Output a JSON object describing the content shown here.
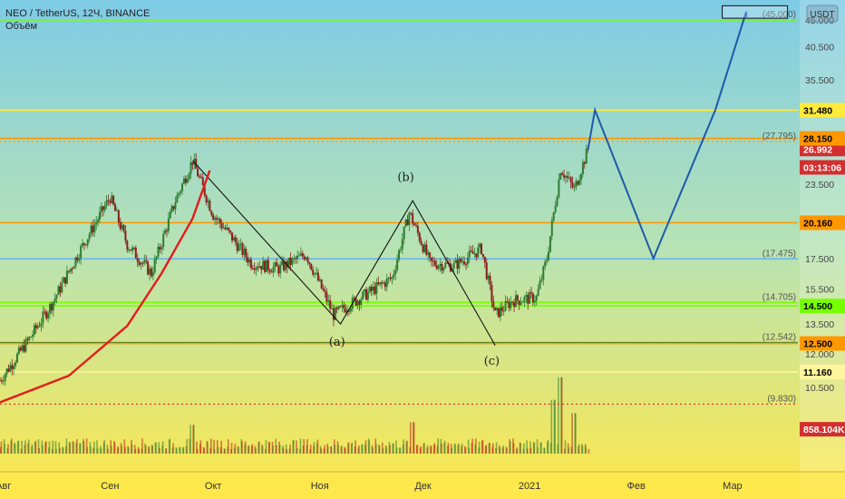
{
  "header": {
    "symbol_line": "NEO / TetherUS, 12Ч, BINANCE",
    "volume_label": "Объём",
    "currency_badge": "USDT"
  },
  "colors": {
    "bg_top": "#7ecbe6",
    "bg_bottom": "#ffe84a",
    "candle_up": "#2e7d32",
    "candle_down": "#8b1e1e",
    "orange": "#ff9800",
    "yellow": "#ffeb3b",
    "green": "#76ff03",
    "blue_line": "#1e5aa8",
    "red_curve": "#e11d1d",
    "price_red": "#d32f2f"
  },
  "chart_data": {
    "type": "candlestick",
    "symbol": "NEO / TetherUS",
    "interval": "12Ч",
    "exchange": "BINANCE",
    "y_axis": {
      "scale": "log",
      "range": [
        9.0,
        48.0
      ],
      "ticks": [
        "45.000",
        "40.500",
        "35.500",
        "23.500",
        "17.500",
        "15.500",
        "13.500",
        "12.000",
        "10.500"
      ]
    },
    "x_axis": {
      "labels": [
        "Авг",
        "Сен",
        "Окт",
        "Ноя",
        "Дек",
        "2021",
        "Фев",
        "Мар"
      ],
      "label_dates": [
        "2020-08-01",
        "2020-09-01",
        "2020-10-01",
        "2020-11-01",
        "2020-12-01",
        "2021-01-01",
        "2021-02-01",
        "2021-03-01"
      ],
      "range": [
        "2020-07-31",
        "2021-03-20"
      ]
    },
    "price_points": [
      [
        "2020-07-31",
        10.8
      ],
      [
        "2020-08-08",
        12.6
      ],
      [
        "2020-08-15",
        14.6
      ],
      [
        "2020-08-24",
        18.4
      ],
      [
        "2020-09-01",
        22.3
      ],
      [
        "2020-09-06",
        18.5
      ],
      [
        "2020-09-13",
        16.5
      ],
      [
        "2020-09-20",
        22.0
      ],
      [
        "2020-09-25",
        25.8
      ],
      [
        "2020-10-01",
        20.8
      ],
      [
        "2020-10-05",
        19.5
      ],
      [
        "2020-10-12",
        17.2
      ],
      [
        "2020-10-20",
        16.8
      ],
      [
        "2020-10-28",
        17.8
      ],
      [
        "2020-11-05",
        14.0
      ],
      [
        "2020-11-13",
        15.0
      ],
      [
        "2020-11-22",
        16.2
      ],
      [
        "2020-11-27",
        21.0
      ],
      [
        "2020-12-03",
        17.2
      ],
      [
        "2020-12-10",
        17.0
      ],
      [
        "2020-12-18",
        18.2
      ],
      [
        "2020-12-22",
        14.0
      ],
      [
        "2020-12-27",
        14.8
      ],
      [
        "2021-01-03",
        15.0
      ],
      [
        "2021-01-06",
        17.5
      ],
      [
        "2021-01-10",
        25.0
      ],
      [
        "2021-01-14",
        23.0
      ],
      [
        "2021-01-18",
        26.99
      ]
    ],
    "horizontal_levels": [
      {
        "value": 45.0,
        "label": "(45.000)",
        "color": "#76ff03",
        "style": "solid"
      },
      {
        "value": 31.48,
        "label": "31.480",
        "color": "#ffeb3b",
        "style": "solid"
      },
      {
        "value": 28.15,
        "label": "28.150",
        "color": "#ff9800",
        "style": "solid"
      },
      {
        "value": 27.795,
        "label": "(27.795)",
        "color": "#ff9800",
        "style": "dotted"
      },
      {
        "value": 20.16,
        "label": "20.160",
        "color": "#ff9800",
        "style": "solid"
      },
      {
        "value": 17.475,
        "label": "(17.475)",
        "color": "#64b5f6",
        "style": "solid"
      },
      {
        "value": 14.705,
        "label": "(14.705)",
        "color": "#76ff03",
        "style": "solid"
      },
      {
        "value": 14.5,
        "label": "14.500",
        "color": "#76ff03",
        "style": "solid"
      },
      {
        "value": 12.542,
        "label": "(12.542)",
        "color": "#2e7d32",
        "style": "solid"
      },
      {
        "value": 12.5,
        "label": "12.500",
        "color": "#ff9800",
        "style": "solid"
      },
      {
        "value": 11.16,
        "label": "11.160",
        "color": "#fff59d",
        "style": "solid"
      },
      {
        "value": 9.83,
        "label": "(9.830)",
        "color": "#d32f2f",
        "style": "dotted"
      }
    ],
    "price_tags": [
      {
        "value": 26.992,
        "label": "26.992",
        "bg": "#d32f2f",
        "fg": "#ffffff"
      },
      {
        "value": 25.1,
        "label": "03:13:06",
        "bg": "#d32f2f",
        "fg": "#ffffff"
      },
      {
        "value": 31.48,
        "label": "31.480",
        "bg": "#ffeb3b",
        "fg": "#000000"
      },
      {
        "value": 28.15,
        "label": "28.150",
        "bg": "#ff9800",
        "fg": "#000000"
      },
      {
        "value": 20.16,
        "label": "20.160",
        "bg": "#ff9800",
        "fg": "#000000"
      },
      {
        "value": 14.5,
        "label": "14.500",
        "bg": "#76ff03",
        "fg": "#000000"
      },
      {
        "value": 12.5,
        "label": "12.500",
        "bg": "#ff9800",
        "fg": "#000000"
      },
      {
        "value": 11.16,
        "label": "11.160",
        "bg": "#fff59d",
        "fg": "#000000"
      },
      {
        "value": 8.9,
        "label": "858.104K",
        "bg": "#d32f2f",
        "fg": "#ffffff"
      }
    ],
    "annotations": [
      {
        "text": "(a)",
        "date": "2020-11-06",
        "value": 12.4
      },
      {
        "text": "(b)",
        "date": "2020-11-26",
        "value": 23.8
      },
      {
        "text": "(c)",
        "date": "2020-12-21",
        "value": 11.5
      }
    ],
    "abc_pattern": [
      [
        "2020-09-25",
        25.8
      ],
      [
        "2020-11-07",
        13.5
      ],
      [
        "2020-11-28",
        22.0
      ],
      [
        "2020-12-22",
        12.4
      ]
    ],
    "projection_path": [
      [
        "2021-01-18",
        27.0
      ],
      [
        "2021-01-20",
        31.5
      ],
      [
        "2021-02-06",
        17.5
      ],
      [
        "2021-02-24",
        31.5
      ],
      [
        "2021-03-05",
        46.5
      ],
      [
        "2021-03-05",
        45.5
      ]
    ],
    "target_box": {
      "from": "2021-02-26",
      "to": "2021-03-17",
      "low": 45.3,
      "high": 47.6
    },
    "red_curve": [
      [
        "2020-07-31",
        9.9
      ],
      [
        "2020-08-20",
        11.0
      ],
      [
        "2020-09-06",
        13.4
      ],
      [
        "2020-09-16",
        16.5
      ],
      [
        "2020-09-25",
        20.5
      ],
      [
        "2020-09-30",
        24.8
      ]
    ],
    "volume": {
      "last_value": "858.104K",
      "notable_spikes": [
        [
          "2020-09-25",
          0.32
        ],
        [
          "2020-11-28",
          0.35
        ],
        [
          "2021-01-08",
          0.6
        ],
        [
          "2021-01-10",
          0.85
        ],
        [
          "2021-01-14",
          0.45
        ]
      ]
    }
  }
}
